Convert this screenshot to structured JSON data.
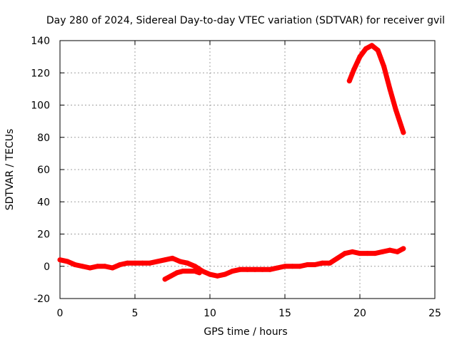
{
  "chart_data": {
    "type": "line",
    "title": "Day 280 of 2024, Sidereal Day-to-day VTEC variation (SDTVAR) for receiver gvil",
    "xlabel": "GPS time / hours",
    "ylabel": "SDTVAR / TECUs",
    "xlim": [
      0,
      25
    ],
    "ylim": [
      -20,
      140
    ],
    "xticks": [
      0,
      5,
      10,
      15,
      20,
      25
    ],
    "yticks": [
      -20,
      0,
      20,
      40,
      60,
      80,
      100,
      120,
      140
    ],
    "grid": true,
    "colors": {
      "series": "#ff0000",
      "grid": "#a0a0a0",
      "axis": "#000000"
    },
    "series": [
      {
        "name": "main-track",
        "x": [
          0.0,
          0.5,
          1.0,
          1.5,
          2.0,
          2.5,
          3.0,
          3.5,
          4.0,
          4.5,
          5.0,
          5.5,
          6.0,
          6.5,
          7.0,
          7.5,
          8.0,
          8.5,
          9.0,
          9.5,
          10.0,
          10.5,
          11.0,
          11.5,
          12.0,
          12.5,
          13.0,
          13.5,
          14.0,
          14.5,
          15.0,
          15.5,
          16.0,
          16.5,
          17.0,
          17.5,
          18.0,
          18.5,
          19.0,
          19.5,
          20.0,
          20.5,
          21.0,
          21.5,
          22.0,
          22.5,
          22.9
        ],
        "y": [
          4,
          3,
          1,
          0,
          -1,
          0,
          0,
          -1,
          1,
          2,
          2,
          2,
          2,
          3,
          4,
          5,
          3,
          2,
          0,
          -3,
          -5,
          -6,
          -5,
          -3,
          -2,
          -2,
          -2,
          -2,
          -2,
          -1,
          0,
          0,
          0,
          1,
          1,
          2,
          2,
          5,
          8,
          9,
          8,
          8,
          8,
          9,
          10,
          9,
          11
        ]
      },
      {
        "name": "secondary-track",
        "x": [
          7.0,
          7.4,
          7.8,
          8.2,
          8.6,
          9.0,
          9.3
        ],
        "y": [
          -8,
          -6,
          -4,
          -3,
          -3,
          -3,
          -4
        ]
      },
      {
        "name": "peak-track",
        "x": [
          19.3,
          19.6,
          20.0,
          20.4,
          20.8,
          21.2,
          21.6,
          22.0,
          22.4,
          22.9
        ],
        "y": [
          115,
          122,
          130,
          135,
          137,
          134,
          124,
          110,
          97,
          83
        ]
      }
    ]
  }
}
